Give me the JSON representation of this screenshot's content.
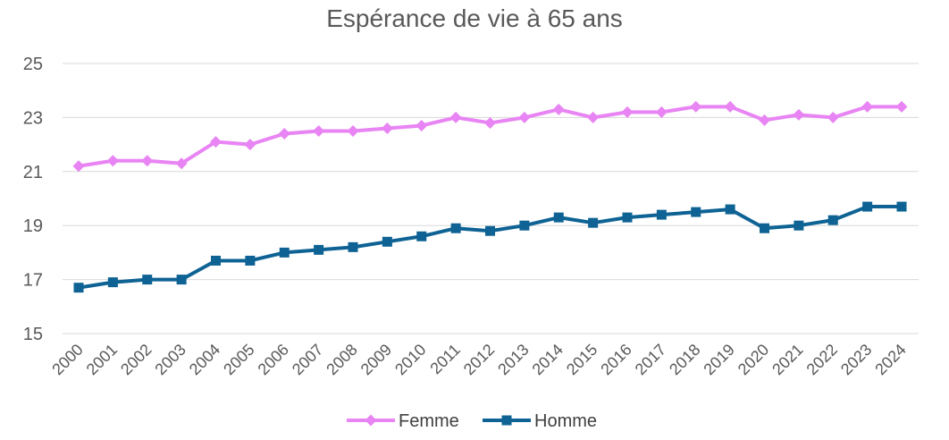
{
  "chart_data": {
    "type": "line",
    "title": "Espérance de vie à 65 ans",
    "xlabel": "",
    "ylabel": "",
    "ylim": [
      15,
      25
    ],
    "y_ticks": [
      "15",
      "17",
      "19",
      "21",
      "23",
      "25"
    ],
    "grid": "horizontal",
    "legend_position": "bottom",
    "categories": [
      "2000",
      "2001",
      "2002",
      "2003",
      "2004",
      "2005",
      "2006",
      "2007",
      "2008",
      "2009",
      "2010",
      "2011",
      "2012",
      "2013",
      "2014",
      "2015",
      "2016",
      "2017",
      "2018",
      "2019",
      "2020",
      "2021",
      "2022",
      "2023",
      "2024"
    ],
    "series": [
      {
        "name": "Femme",
        "color": "#E884F3",
        "marker": "diamond",
        "values": [
          21.2,
          21.4,
          21.4,
          21.3,
          22.1,
          22.0,
          22.4,
          22.5,
          22.5,
          22.6,
          22.7,
          23.0,
          22.8,
          23.0,
          23.3,
          23.0,
          23.2,
          23.2,
          23.4,
          23.4,
          22.9,
          23.1,
          23.0,
          23.4,
          23.4
        ]
      },
      {
        "name": "Homme",
        "color": "#0E6394",
        "marker": "square",
        "values": [
          16.7,
          16.9,
          17.0,
          17.0,
          17.7,
          17.7,
          18.0,
          18.1,
          18.2,
          18.4,
          18.6,
          18.9,
          18.8,
          19.0,
          19.3,
          19.1,
          19.3,
          19.4,
          19.5,
          19.6,
          18.9,
          19.0,
          19.2,
          19.7,
          19.7
        ]
      }
    ]
  }
}
